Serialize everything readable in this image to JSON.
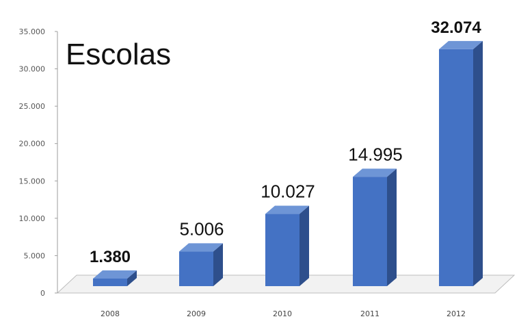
{
  "chart_data": {
    "type": "bar",
    "title": "Escolas",
    "categories": [
      "2008",
      "2009",
      "2010",
      "2011",
      "2012"
    ],
    "values": [
      1380,
      5006,
      10027,
      14995,
      32074
    ],
    "value_labels": [
      "1.380",
      "5.006",
      "10.027",
      "14.995",
      "32.074"
    ],
    "value_label_bold": [
      true,
      false,
      false,
      false,
      true
    ],
    "ylim": [
      0,
      35000
    ],
    "yticks": [
      0,
      5000,
      10000,
      15000,
      20000,
      25000,
      30000,
      35000
    ],
    "ytick_labels": [
      "0",
      "5.000",
      "10.000",
      "15.000",
      "20.000",
      "25.000",
      "30.000",
      "35.000"
    ],
    "grid": false,
    "legend": "none",
    "style": "3d-column",
    "bar_color": "#4472C4",
    "bar_side_color": "#2E4F8C",
    "bar_top_color": "#6E95D6"
  }
}
